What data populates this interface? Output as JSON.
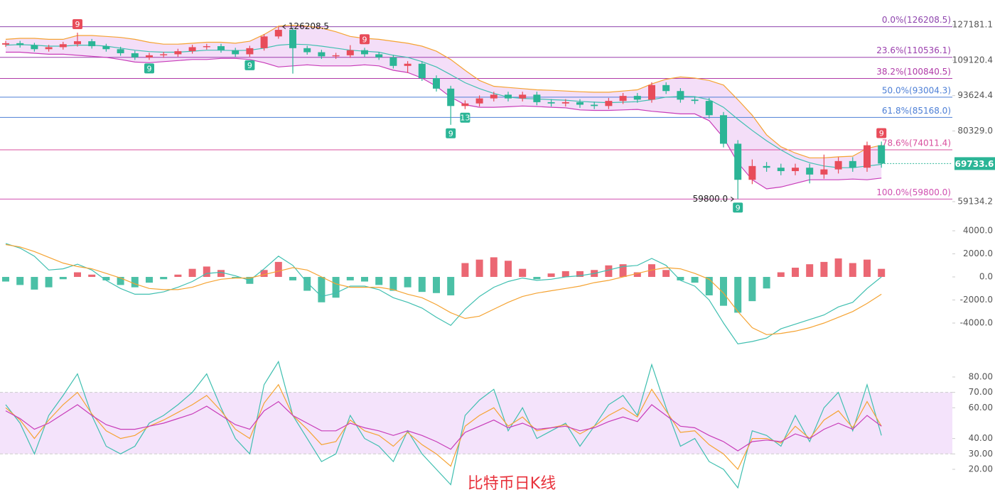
{
  "chart_data": [
    {
      "type": "candlestick",
      "title": "比特币日K线",
      "log_scale": true,
      "ylim": [
        56290,
        141700
      ],
      "yticks": [
        127181.1,
        109120.4,
        93624.4,
        {
          "value": 80329,
          "label": "80329.0"
        },
        59134.2
      ],
      "up_color": "#e84c5a",
      "down_color": "#2bb596",
      "open": [
        116800,
        117500,
        116500,
        114500,
        115500,
        117000,
        118500,
        116000,
        114500,
        112500,
        110500,
        111500,
        112000,
        113500,
        115500,
        116000,
        114000,
        112000,
        115000,
        121000,
        124500,
        115000,
        113000,
        111000,
        111500,
        114000,
        112000,
        110500,
        106500,
        107500,
        101000,
        96500,
        89500,
        90500,
        92500,
        94000,
        92500,
        94000,
        91000,
        90500,
        91000,
        90000,
        89500,
        91500,
        93500,
        92000,
        98000,
        95500,
        92000,
        91500,
        86000,
        76000,
        65000,
        69000,
        68500,
        67500,
        68500,
        66500,
        68000,
        70500,
        68500,
        75500
      ],
      "high": [
        118700,
        118700,
        117700,
        116700,
        118200,
        123000,
        119700,
        117200,
        115700,
        113700,
        112700,
        113200,
        114700,
        116700,
        117200,
        117200,
        115200,
        116200,
        122200,
        126208.5,
        125700,
        116200,
        114200,
        112700,
        116500,
        115200,
        113200,
        111700,
        108700,
        108700,
        102200,
        97700,
        91700,
        93700,
        95200,
        95200,
        95200,
        95200,
        92200,
        92200,
        92200,
        91200,
        92700,
        94700,
        94700,
        99200,
        99200,
        96700,
        93200,
        92700,
        87200,
        77200,
        71000,
        70200,
        69700,
        69700,
        69700,
        72500,
        71700,
        71700,
        76700,
        76700
      ],
      "low": [
        115600,
        115300,
        113300,
        113300,
        114300,
        115800,
        114800,
        113300,
        111300,
        109300,
        109300,
        110300,
        110800,
        112300,
        114300,
        112800,
        110800,
        110800,
        113800,
        119800,
        103000,
        111800,
        109800,
        109800,
        110300,
        110800,
        109300,
        105300,
        103300,
        99800,
        95300,
        82500,
        88300,
        89300,
        91300,
        91300,
        91300,
        89800,
        89300,
        89300,
        88800,
        88300,
        88300,
        90300,
        90800,
        90800,
        94300,
        90800,
        90300,
        84800,
        74800,
        59800,
        63800,
        67300,
        66300,
        66300,
        64000,
        65300,
        66800,
        67300,
        67300,
        68500
      ],
      "close": [
        117500,
        116500,
        114500,
        115500,
        117000,
        118500,
        116000,
        114500,
        112500,
        110500,
        111500,
        112000,
        113500,
        115500,
        116000,
        114000,
        112000,
        115000,
        121000,
        124500,
        115000,
        113000,
        111000,
        111500,
        114000,
        112000,
        110500,
        106500,
        107500,
        101000,
        96500,
        89500,
        90500,
        92500,
        94000,
        92500,
        94000,
        91000,
        90500,
        91000,
        90000,
        89500,
        91500,
        93500,
        92000,
        98000,
        95500,
        92000,
        91500,
        86000,
        76000,
        65000,
        69000,
        68500,
        67500,
        68500,
        66500,
        68000,
        70500,
        68500,
        75500,
        69733.6
      ],
      "bollinger": {
        "fill": "#f4def8",
        "upper": {
          "color": "#f5a332",
          "values": [
            119500,
            120000,
            120000,
            119500,
            119500,
            121500,
            121500,
            121000,
            120500,
            119500,
            118000,
            117000,
            117000,
            117500,
            118000,
            118000,
            117500,
            118500,
            122000,
            126500,
            127000,
            126500,
            125500,
            123500,
            121000,
            120000,
            119500,
            118500,
            117500,
            116000,
            113500,
            109500,
            104500,
            100000,
            97500,
            97000,
            96500,
            96000,
            95800,
            95500,
            95200,
            95000,
            95000,
            95500,
            96000,
            98500,
            100500,
            101500,
            101000,
            100000,
            98000,
            92000,
            86000,
            79000,
            75000,
            73000,
            71500,
            71500,
            71800,
            72000,
            74500,
            75500
          ]
        },
        "middle": {
          "color": "#3fbfb0",
          "values": [
            116500,
            116800,
            116500,
            116000,
            116000,
            116500,
            116500,
            116000,
            115000,
            114000,
            113300,
            113000,
            113000,
            113500,
            114000,
            114000,
            113800,
            114000,
            115000,
            116500,
            117000,
            116800,
            116000,
            115000,
            114000,
            113500,
            113000,
            111500,
            110500,
            108500,
            106000,
            102500,
            99000,
            96500,
            94500,
            93000,
            92500,
            92300,
            92000,
            91800,
            91300,
            91000,
            90800,
            91000,
            91200,
            92000,
            93000,
            93300,
            93200,
            92000,
            89000,
            84500,
            80500,
            77000,
            74000,
            71500,
            70000,
            69000,
            68500,
            68500,
            69000,
            69500
          ]
        },
        "lower": {
          "color": "#c83cb9",
          "values": [
            113000,
            113000,
            112500,
            112000,
            112000,
            111500,
            111000,
            110500,
            109500,
            108300,
            108000,
            108500,
            109000,
            109500,
            109500,
            110000,
            110000,
            109500,
            108000,
            106000,
            106500,
            107000,
            106500,
            106500,
            106500,
            107000,
            106500,
            104500,
            103500,
            101000,
            97500,
            93000,
            90000,
            89000,
            89000,
            89200,
            89500,
            89300,
            89000,
            88800,
            88000,
            87800,
            87800,
            88000,
            88200,
            87500,
            87000,
            86500,
            86500,
            84000,
            78000,
            70000,
            65000,
            62500,
            63000,
            64000,
            65000,
            65000,
            65000,
            65200,
            65000,
            65500
          ]
        }
      },
      "fib_levels": [
        {
          "label": "0.0%(126208.5)",
          "value": 126208.5,
          "color": "#8e44ad"
        },
        {
          "label": "23.6%(110536.1)",
          "value": 110536.1,
          "color": "#9b3fae"
        },
        {
          "label": "38.2%(100840.5)",
          "value": 100840.5,
          "color": "#b03aa8"
        },
        {
          "label": "50.0%(93004.3)",
          "value": 93004.3,
          "color": "#4d7fd6"
        },
        {
          "label": "61.8%(85168.0)",
          "value": 85168,
          "color": "#4d7fd6"
        },
        {
          "label": "78.6%(74011.4)",
          "value": 74011.4,
          "color": "#d94f9e"
        },
        {
          "label": "100.0%(59800.0)",
          "value": 59800,
          "color": "#d04fb0"
        }
      ],
      "annotations": [
        {
          "index": 19,
          "value": 126208.5,
          "label": "126208.5",
          "side": "right"
        },
        {
          "index": 51,
          "value": 59800,
          "label": "59800.0",
          "side": "left"
        }
      ],
      "markers": [
        {
          "index": 5,
          "text": "9",
          "side": "top",
          "color": "#e84c5a"
        },
        {
          "index": 10,
          "text": "9",
          "side": "bottom",
          "color": "#2bb596"
        },
        {
          "index": 17,
          "text": "9",
          "side": "bottom",
          "color": "#2bb596"
        },
        {
          "index": 25,
          "text": "9",
          "side": "top",
          "color": "#e84c5a"
        },
        {
          "index": 31,
          "text": "9",
          "side": "bottom",
          "color": "#2bb596"
        },
        {
          "index": 32,
          "text": "13",
          "side": "bottom",
          "color": "#2bb596"
        },
        {
          "index": 51,
          "text": "9",
          "side": "bottom",
          "color": "#2bb596"
        },
        {
          "index": 61,
          "text": "9",
          "side": "top",
          "color": "#e84c5a"
        }
      ],
      "last_price_color": "#2bb596"
    },
    {
      "type": "macd",
      "ylim": [
        -6460,
        5540
      ],
      "yticks": [
        {
          "value": 4000,
          "label": "4000.0"
        },
        {
          "value": 2000,
          "label": "2000.0"
        },
        {
          "value": 0,
          "label": "0.0"
        },
        {
          "value": -2000,
          "label": "-2000.0"
        },
        {
          "value": -4000,
          "label": "-4000.0"
        }
      ],
      "histogram": {
        "up_color": "#e84c5a",
        "down_color": "#2bb596",
        "values": [
          -400,
          -700,
          -1100,
          -900,
          -200,
          400,
          200,
          -300,
          -700,
          -900,
          -500,
          -200,
          200,
          700,
          900,
          600,
          -100,
          -600,
          600,
          1300,
          -300,
          -1200,
          -2200,
          -1800,
          -300,
          -400,
          -700,
          -1200,
          -900,
          -1300,
          -1400,
          -1600,
          1200,
          1500,
          1700,
          1400,
          700,
          -200,
          300,
          500,
          500,
          600,
          1000,
          1100,
          400,
          1100,
          600,
          -300,
          -500,
          -1600,
          -2500,
          -3100,
          -2100,
          -1000,
          400,
          800,
          1100,
          1300,
          1600,
          1200,
          1500,
          700
        ]
      },
      "lines": [
        {
          "color": "#3fbfb0",
          "values": [
            2900,
            2500,
            1800,
            600,
            700,
            1100,
            600,
            -300,
            -1000,
            -1500,
            -1500,
            -1300,
            -900,
            -400,
            300,
            400,
            100,
            -300,
            700,
            1800,
            1000,
            -500,
            -1700,
            -1400,
            -800,
            -800,
            -1100,
            -1800,
            -2200,
            -2700,
            -3500,
            -4200,
            -2800,
            -1700,
            -900,
            -400,
            -100,
            -300,
            -200,
            0,
            100,
            300,
            600,
            900,
            1000,
            1600,
            1000,
            -300,
            -800,
            -2000,
            -4000,
            -5800,
            -5600,
            -5300,
            -4500,
            -4100,
            -3700,
            -3300,
            -2600,
            -2200,
            -1000,
            0
          ]
        },
        {
          "color": "#f5a332",
          "values": [
            2800,
            2600,
            2200,
            1700,
            1200,
            900,
            700,
            300,
            -100,
            -600,
            -1000,
            -1100,
            -1100,
            -900,
            -500,
            -200,
            -100,
            -100,
            200,
            500,
            800,
            600,
            0,
            -600,
            -900,
            -900,
            -900,
            -1100,
            -1500,
            -1800,
            -2400,
            -3100,
            -3600,
            -3400,
            -2800,
            -2200,
            -1700,
            -1400,
            -1200,
            -1000,
            -800,
            -500,
            -300,
            0,
            300,
            600,
            800,
            700,
            300,
            -200,
            -1400,
            -3000,
            -4400,
            -5000,
            -4900,
            -4700,
            -4400,
            -4000,
            -3500,
            -3000,
            -2300,
            -1500
          ]
        }
      ]
    },
    {
      "type": "rsi",
      "ylim": [
        6.6,
        94.3
      ],
      "yticks": [
        {
          "value": 80,
          "label": "80.00"
        },
        {
          "value": 70,
          "label": "70.00"
        },
        {
          "value": 60,
          "label": "60.00"
        },
        {
          "value": 40,
          "label": "40.00"
        },
        {
          "value": 30,
          "label": "30.00"
        },
        {
          "value": 20,
          "label": "20.00"
        }
      ],
      "band": [
        30,
        70
      ],
      "band_color": "#f4e3fb",
      "lines": [
        {
          "color": "#3fbfb0",
          "values": [
            62,
            50,
            30,
            55,
            68,
            82,
            55,
            35,
            30,
            35,
            50,
            55,
            62,
            70,
            82,
            60,
            40,
            30,
            75,
            90,
            55,
            40,
            25,
            30,
            55,
            40,
            35,
            25,
            45,
            30,
            20,
            10,
            55,
            65,
            72,
            45,
            60,
            40,
            45,
            50,
            35,
            48,
            62,
            68,
            55,
            88,
            60,
            35,
            40,
            25,
            20,
            8,
            45,
            42,
            35,
            55,
            38,
            60,
            70,
            45,
            75,
            42
          ]
        },
        {
          "color": "#f5a332",
          "values": [
            60,
            52,
            40,
            52,
            62,
            70,
            56,
            45,
            40,
            42,
            48,
            52,
            57,
            62,
            68,
            58,
            46,
            40,
            63,
            75,
            55,
            46,
            36,
            38,
            52,
            45,
            42,
            35,
            44,
            36,
            30,
            22,
            48,
            55,
            60,
            48,
            54,
            45,
            47,
            49,
            43,
            48,
            55,
            60,
            54,
            72,
            58,
            44,
            45,
            36,
            30,
            20,
            40,
            40,
            37,
            48,
            40,
            52,
            58,
            47,
            64,
            48
          ]
        },
        {
          "color": "#c83cb9",
          "values": [
            58,
            53,
            46,
            50,
            56,
            62,
            55,
            49,
            46,
            46,
            48,
            50,
            53,
            56,
            61,
            55,
            49,
            46,
            58,
            64,
            55,
            50,
            45,
            45,
            50,
            47,
            45,
            42,
            45,
            42,
            38,
            33,
            44,
            48,
            52,
            47,
            50,
            46,
            47,
            48,
            45,
            47,
            51,
            54,
            51,
            62,
            55,
            48,
            47,
            42,
            38,
            32,
            38,
            39,
            38,
            43,
            40,
            46,
            50,
            46,
            55,
            48
          ]
        }
      ]
    }
  ]
}
